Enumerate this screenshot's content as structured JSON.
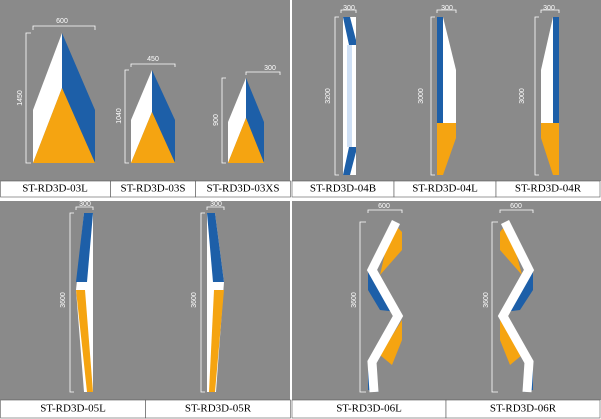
{
  "products": [
    {
      "label": "ST-RD3D-03L",
      "width": "600",
      "height": "1450"
    },
    {
      "label": "ST-RD3D-03S",
      "width": "450",
      "height": "1040"
    },
    {
      "label": "ST-RD3D-03XS",
      "width": "300",
      "height": "900"
    },
    {
      "label": "ST-RD3D-04B",
      "width": "300",
      "height": "3200"
    },
    {
      "label": "ST-RD3D-04L",
      "width": "300",
      "height": "3000"
    },
    {
      "label": "ST-RD3D-04R",
      "width": "300",
      "height": "3000"
    },
    {
      "label": "ST-RD3D-05L",
      "width": "300",
      "height": "3600"
    },
    {
      "label": "ST-RD3D-05R",
      "width": "300",
      "height": "3600"
    },
    {
      "label": "ST-RD3D-06L",
      "width": "600",
      "height": "3600"
    },
    {
      "label": "ST-RD3D-06R",
      "width": "600",
      "height": "3600"
    }
  ]
}
